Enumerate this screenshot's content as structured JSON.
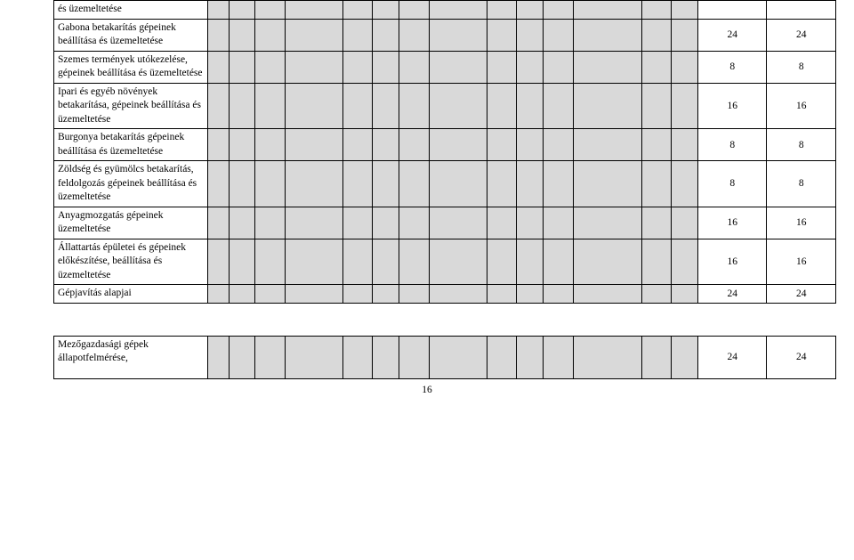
{
  "rows": [
    {
      "label": "és üzemeltetése",
      "v1": "",
      "v2": "",
      "short": true
    },
    {
      "label": "Gabona betakarítás gépeinek beállítása és üzemeltetése",
      "v1": "24",
      "v2": "24"
    },
    {
      "label": "Szemes termények utókezelése, gépeinek beállítása és üzemeltetése",
      "v1": "8",
      "v2": "8"
    },
    {
      "label": "Ipari és egyéb növények betakarítása, gépeinek beállítása és üzemeltetése",
      "v1": "16",
      "v2": "16"
    },
    {
      "label": "Burgonya betakarítás gépeinek beállítása és üzemeltetése",
      "v1": "8",
      "v2": "8"
    },
    {
      "label": "Zöldség és gyümölcs betakarítás, feldolgozás gépeinek beállítása és üzemeltetése",
      "v1": "8",
      "v2": "8"
    },
    {
      "label": "Anyagmozgatás gépeinek üzemeltetése",
      "v1": "16",
      "v2": "16"
    },
    {
      "label": "Állattartás épületei és gépeinek előkészítése, beállítása és üzemeltetése",
      "v1": "16",
      "v2": "16"
    },
    {
      "label": "Gépjavítás alapjai",
      "v1": "24",
      "v2": "24",
      "short": true
    }
  ],
  "lower": {
    "label": "Mezőgazdasági gépek állapotfelmérése,",
    "v1": "24",
    "v2": "24"
  },
  "pageNumber": "16"
}
